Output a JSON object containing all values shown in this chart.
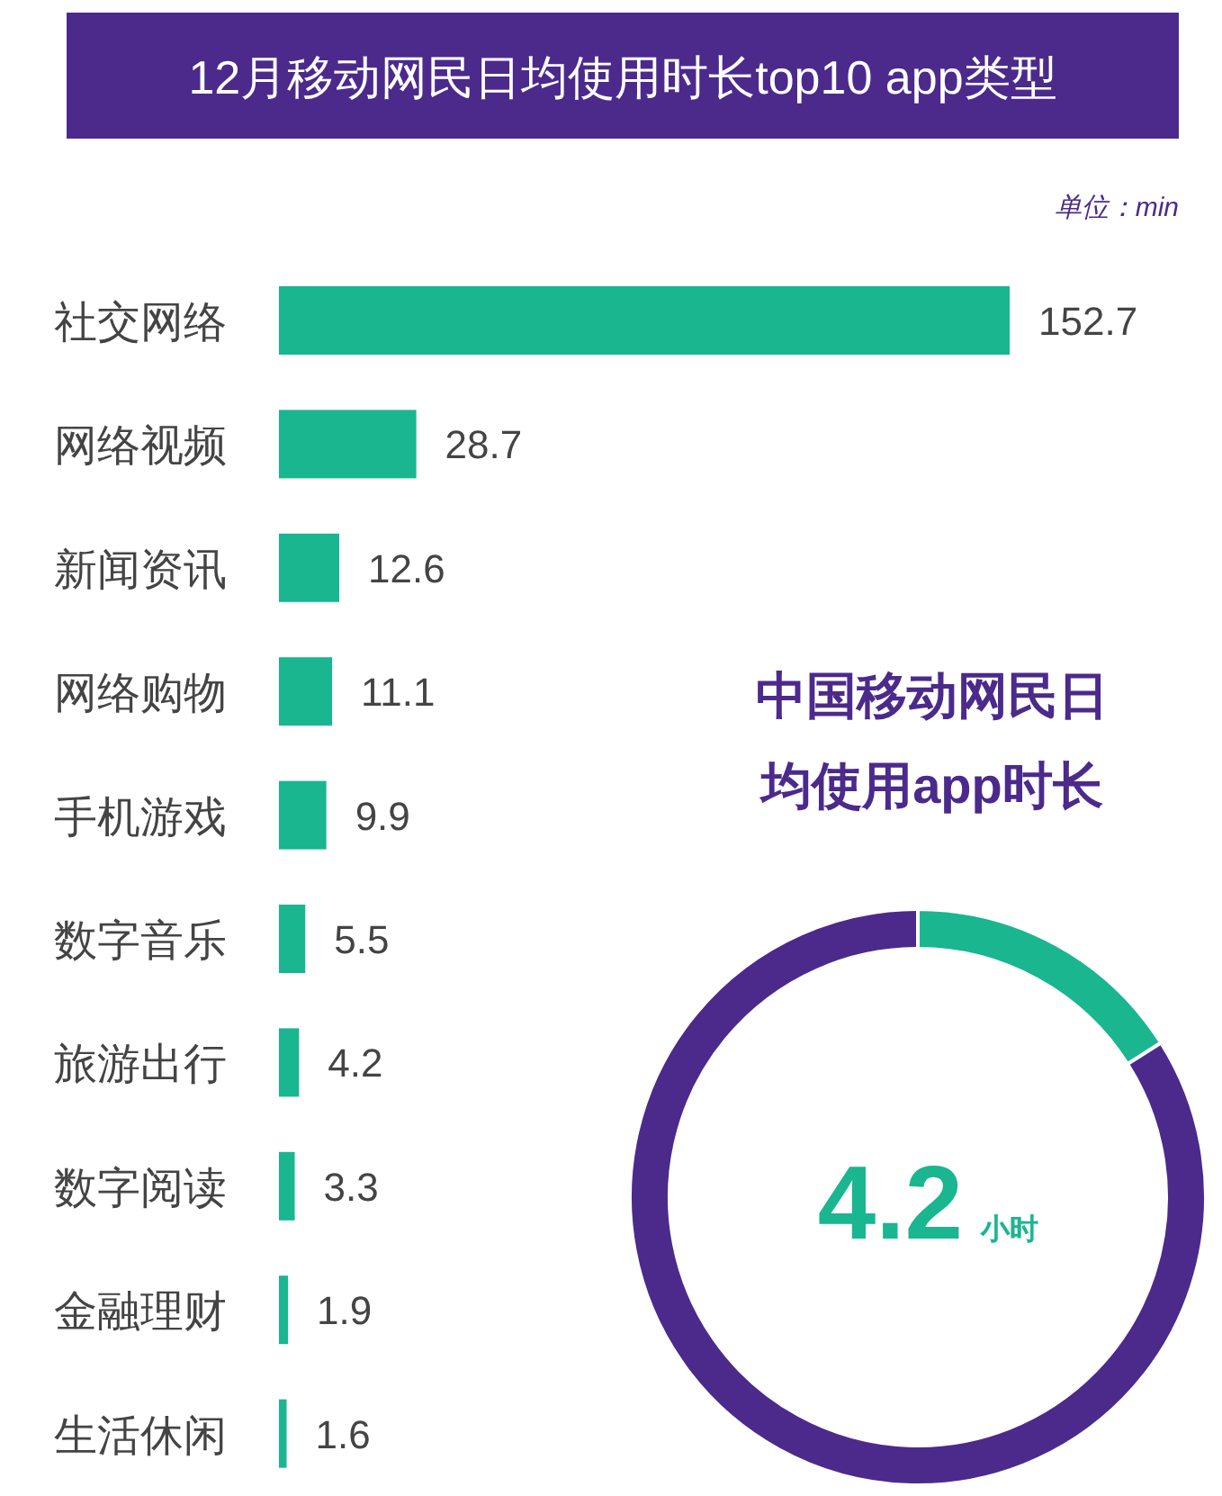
{
  "chart_data": [
    {
      "type": "bar",
      "orientation": "horizontal",
      "title": "12月移动网民日均使用时长top10 app类型",
      "annotations": [
        "单位：min"
      ],
      "categories": [
        "社交网络",
        "网络视频",
        "新闻资讯",
        "网络购物",
        "手机游戏",
        "数字音乐",
        "旅游出行",
        "数字阅读",
        "金融理财",
        "生活休闲"
      ],
      "values": [
        152.7,
        28.7,
        12.6,
        11.1,
        9.9,
        5.5,
        4.2,
        3.3,
        1.9,
        1.6
      ],
      "color": "#19b690",
      "data_labels": true
    },
    {
      "type": "donut",
      "title": "中国移动网民日均使用app时长",
      "categories": [
        null,
        null
      ],
      "values": [
        16,
        84
      ],
      "colors": [
        "#19b690",
        "#4b2a8c"
      ],
      "annotations": [
        "4.2",
        "小时"
      ]
    }
  ]
}
